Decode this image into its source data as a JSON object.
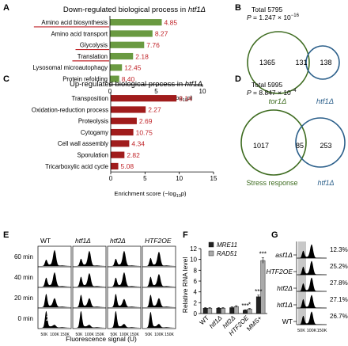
{
  "panel_letters": [
    "A",
    "B",
    "C",
    "D",
    "E",
    "F",
    "G"
  ],
  "chart_data": [
    {
      "panel": "A",
      "type": "bar",
      "orientation": "horizontal",
      "title": "Down-regulated biological process in htf1Δ",
      "categories": [
        "Amino acid biosynthesis",
        "Amino acid transport",
        "Glycolysis",
        "Translation",
        "Lysosomal microautophagy",
        "Protein refolding"
      ],
      "values": [
        4.85,
        8.27,
        7.76,
        2.18,
        12.45,
        8.4
      ],
      "value_labels": [
        "4.85",
        "8.27",
        "7.76",
        "2.18",
        "12.45",
        "8.40"
      ],
      "bar_lengths": [
        5.6,
        4.6,
        3.7,
        2.5,
        1.3,
        1.0
      ],
      "underlined_categories": [
        "Amino acid biosynthesis",
        "Glycolysis",
        "Translation"
      ],
      "xlabel": "Enrichment score (−log10p)",
      "xlim": [
        0,
        10
      ],
      "xticks": [
        "0",
        "5",
        "10"
      ],
      "bar_color": "#6a9a41",
      "label_color": "#c0252a"
    },
    {
      "panel": "B",
      "type": "venn",
      "total_label": "Total 5795",
      "p_label": "P = 1.247 × 10−16",
      "left_only": "1365",
      "overlap": "131",
      "right_only": "138",
      "left_set": "tor1Δ",
      "right_set": "htf1Δ",
      "left_color": "#3d6b1f",
      "right_color": "#2b5f8a"
    },
    {
      "panel": "C",
      "type": "bar",
      "orientation": "horizontal",
      "title": "Up-regulated biological process in htf1Δ",
      "categories": [
        "Transposition",
        "Oxidation-reduction process",
        "Proteolysis",
        "Cytogamy",
        "Cell wall assembly",
        "Sporulation",
        "Tricarboxylic acid cycle"
      ],
      "values": [
        8.14,
        2.27,
        2.69,
        10.75,
        4.34,
        2.82,
        5.08
      ],
      "value_labels": [
        "8.14",
        "2.27",
        "2.69",
        "10.75",
        "4.34",
        "2.82",
        "5.08"
      ],
      "bar_lengths": [
        9.6,
        5.1,
        3.8,
        3.3,
        2.7,
        2.0,
        1.1
      ],
      "xlabel": "Enrichment score (−log10p)",
      "xlim": [
        0,
        15
      ],
      "xticks": [
        "0",
        "5",
        "10",
        "15"
      ],
      "bar_color": "#a01c1c",
      "label_color": "#c0252a"
    },
    {
      "panel": "D",
      "type": "venn",
      "total_label": "Total 5995",
      "p_label": "P = 8.847 × 10−4",
      "left_only": "1017",
      "overlap": "85",
      "right_only": "253",
      "left_set": "Stress response",
      "right_set": "htf1Δ",
      "left_color": "#3d6b1f",
      "right_color": "#2b5f8a"
    },
    {
      "panel": "E",
      "type": "histogram_grid",
      "columns": [
        "WT",
        "htf1Δ",
        "htf2Δ",
        "HTF2OE"
      ],
      "rows": [
        "60 min",
        "40 min",
        "20 min",
        "0 min"
      ],
      "peak_label": "2n",
      "xticks": [
        "50K",
        "100K",
        "150K"
      ],
      "xlabel": "Fluorescence signal (U)"
    },
    {
      "panel": "F",
      "type": "bar",
      "orientation": "vertical",
      "categories": [
        "WT",
        "htf1Δ",
        "htf2Δ",
        "HTF2OE",
        "MMS+"
      ],
      "series": [
        {
          "name": "MRE11",
          "values": [
            1.0,
            1.0,
            1.1,
            0.6,
            3.1
          ],
          "errors": [
            0.1,
            0.1,
            0.15,
            0.1,
            0.3
          ],
          "color": "#222222"
        },
        {
          "name": "RAD51",
          "values": [
            1.0,
            1.0,
            1.3,
            0.85,
            9.8
          ],
          "errors": [
            0.1,
            0.1,
            0.15,
            0.1,
            0.5
          ],
          "color": "#aaaaaa"
        }
      ],
      "significance": [
        {
          "category": "HTF2OE",
          "label": "***"
        },
        {
          "category": "HTF2OE",
          "label": "*"
        },
        {
          "category": "MMS+",
          "label": "***"
        },
        {
          "category": "MMS+",
          "label": "***"
        }
      ],
      "ylabel": "Relative RNA level",
      "ylim": [
        0,
        12
      ],
      "yticks": [
        "0",
        "2",
        "4",
        "6",
        "8",
        "10",
        "12"
      ]
    },
    {
      "panel": "G",
      "type": "histogram_stack",
      "rows": [
        "asf1Δ",
        "HTF2OE",
        "htf2Δ",
        "htf1Δ",
        "WT"
      ],
      "percentages": [
        "12.3%",
        "25.2%",
        "27.8%",
        "27.1%",
        "26.7%"
      ],
      "xticks": [
        "50K",
        "100K",
        "150K"
      ]
    }
  ]
}
